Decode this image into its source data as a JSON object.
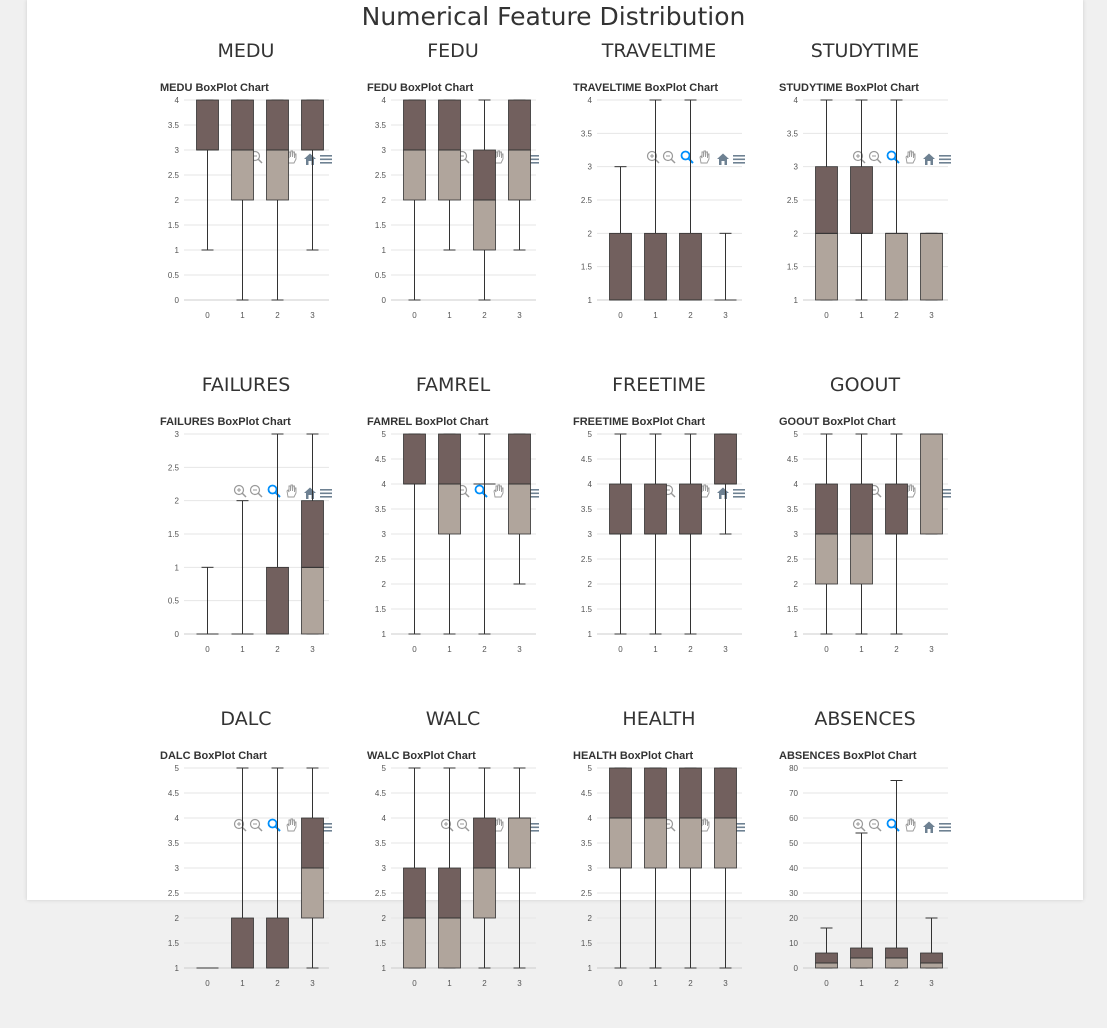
{
  "page": {
    "title": "Numerical Feature Distribution"
  },
  "colors": {
    "upper_box": "#72605e",
    "lower_box": "#b0a59c",
    "grid": "#e6e6e6",
    "axis": "#cccccc"
  },
  "toolbar_icons": [
    "zoom-in-icon",
    "zoom-out-icon",
    "magnify-icon",
    "pan-icon",
    "home-icon",
    "menu-icon"
  ],
  "chart_data": [
    {
      "type": "boxplot",
      "title": "MEDU",
      "chart_label": "MEDU BoxPlot Chart",
      "categories": [
        "0",
        "1",
        "2",
        "3"
      ],
      "ylim": [
        0,
        4
      ],
      "yticks": [
        "0",
        "0.5",
        "1",
        "1.5",
        "2",
        "2.5",
        "3",
        "3.5",
        "4"
      ],
      "boxes": [
        {
          "min": 1,
          "q1": 3,
          "median": 3,
          "q3": 4,
          "max": 4
        },
        {
          "min": 0,
          "q1": 2,
          "median": 3,
          "q3": 4,
          "max": 4
        },
        {
          "min": 0,
          "q1": 2,
          "median": 3,
          "q3": 4,
          "max": 4
        },
        {
          "min": 1,
          "q1": 3,
          "median": 3,
          "q3": 4,
          "max": 4
        }
      ]
    },
    {
      "type": "boxplot",
      "title": "FEDU",
      "chart_label": "FEDU BoxPlot Chart",
      "categories": [
        "0",
        "1",
        "2",
        "3"
      ],
      "ylim": [
        0,
        4
      ],
      "yticks": [
        "0",
        "0.5",
        "1",
        "1.5",
        "2",
        "2.5",
        "3",
        "3.5",
        "4"
      ],
      "boxes": [
        {
          "min": 0,
          "q1": 2,
          "median": 3,
          "q3": 4,
          "max": 4
        },
        {
          "min": 1,
          "q1": 2,
          "median": 3,
          "q3": 4,
          "max": 4
        },
        {
          "min": 0,
          "q1": 1,
          "median": 2,
          "q3": 3,
          "max": 4
        },
        {
          "min": 1,
          "q1": 2,
          "median": 3,
          "q3": 4,
          "max": 4
        }
      ]
    },
    {
      "type": "boxplot",
      "title": "TRAVELTIME",
      "chart_label": "TRAVELTIME BoxPlot Chart",
      "categories": [
        "0",
        "1",
        "2",
        "3"
      ],
      "ylim": [
        1,
        4
      ],
      "yticks": [
        "1",
        "1.5",
        "2",
        "2.5",
        "3",
        "3.5",
        "4"
      ],
      "boxes": [
        {
          "min": 1,
          "q1": 1,
          "median": 1,
          "q3": 2,
          "max": 3
        },
        {
          "min": 1,
          "q1": 1,
          "median": 1,
          "q3": 2,
          "max": 4
        },
        {
          "min": 1,
          "q1": 1,
          "median": 1,
          "q3": 2,
          "max": 4
        },
        {
          "min": 1,
          "q1": 1,
          "median": 1,
          "q3": 1,
          "max": 2
        }
      ]
    },
    {
      "type": "boxplot",
      "title": "STUDYTIME",
      "chart_label": "STUDYTIME BoxPlot Chart",
      "categories": [
        "0",
        "1",
        "2",
        "3"
      ],
      "ylim": [
        1,
        4
      ],
      "yticks": [
        "1",
        "1.5",
        "2",
        "2.5",
        "3",
        "3.5",
        "4"
      ],
      "boxes": [
        {
          "min": 1,
          "q1": 1,
          "median": 2,
          "q3": 3,
          "max": 4
        },
        {
          "min": 1,
          "q1": 2,
          "median": 2,
          "q3": 3,
          "max": 4
        },
        {
          "min": 1,
          "q1": 1,
          "median": 2,
          "q3": 2,
          "max": 4
        },
        {
          "min": 1,
          "q1": 1,
          "median": 2,
          "q3": 2,
          "max": 2
        }
      ]
    },
    {
      "type": "boxplot",
      "title": "FAILURES",
      "chart_label": "FAILURES BoxPlot Chart",
      "categories": [
        "0",
        "1",
        "2",
        "3"
      ],
      "ylim": [
        0,
        3
      ],
      "yticks": [
        "0",
        "0.5",
        "1",
        "1.5",
        "2",
        "2.5",
        "3"
      ],
      "boxes": [
        {
          "min": 0,
          "q1": 0,
          "median": 0,
          "q3": 0,
          "max": 1
        },
        {
          "min": 0,
          "q1": 0,
          "median": 0,
          "q3": 0,
          "max": 2
        },
        {
          "min": 0,
          "q1": 0,
          "median": 0,
          "q3": 1,
          "max": 3
        },
        {
          "min": 0,
          "q1": 0,
          "median": 1,
          "q3": 2,
          "max": 3
        }
      ]
    },
    {
      "type": "boxplot",
      "title": "FAMREL",
      "chart_label": "FAMREL BoxPlot Chart",
      "categories": [
        "0",
        "1",
        "2",
        "3"
      ],
      "ylim": [
        1,
        5
      ],
      "yticks": [
        "1",
        "1.5",
        "2",
        "2.5",
        "3",
        "3.5",
        "4",
        "4.5",
        "5"
      ],
      "boxes": [
        {
          "min": 1,
          "q1": 4,
          "median": 4,
          "q3": 5,
          "max": 5
        },
        {
          "min": 1,
          "q1": 3,
          "median": 4,
          "q3": 5,
          "max": 5
        },
        {
          "min": 1,
          "q1": 4,
          "median": 4,
          "q3": 4,
          "max": 5
        },
        {
          "min": 2,
          "q1": 3,
          "median": 4,
          "q3": 5,
          "max": 5
        }
      ]
    },
    {
      "type": "boxplot",
      "title": "FREETIME",
      "chart_label": "FREETIME BoxPlot Chart",
      "categories": [
        "0",
        "1",
        "2",
        "3"
      ],
      "ylim": [
        1,
        5
      ],
      "yticks": [
        "1",
        "1.5",
        "2",
        "2.5",
        "3",
        "3.5",
        "4",
        "4.5",
        "5"
      ],
      "boxes": [
        {
          "min": 1,
          "q1": 3,
          "median": 3,
          "q3": 4,
          "max": 5
        },
        {
          "min": 1,
          "q1": 3,
          "median": 3,
          "q3": 4,
          "max": 5
        },
        {
          "min": 1,
          "q1": 3,
          "median": 3,
          "q3": 4,
          "max": 5
        },
        {
          "min": 3,
          "q1": 4,
          "median": 4,
          "q3": 5,
          "max": 5
        }
      ]
    },
    {
      "type": "boxplot",
      "title": "GOOUT",
      "chart_label": "GOOUT BoxPlot Chart",
      "categories": [
        "0",
        "1",
        "2",
        "3"
      ],
      "ylim": [
        1,
        5
      ],
      "yticks": [
        "1",
        "1.5",
        "2",
        "2.5",
        "3",
        "3.5",
        "4",
        "4.5",
        "5"
      ],
      "boxes": [
        {
          "min": 1,
          "q1": 2,
          "median": 3,
          "q3": 4,
          "max": 5
        },
        {
          "min": 1,
          "q1": 2,
          "median": 3,
          "q3": 4,
          "max": 5
        },
        {
          "min": 1,
          "q1": 3,
          "median": 3,
          "q3": 4,
          "max": 5
        },
        {
          "min": 3,
          "q1": 3,
          "median": 5,
          "q3": 5,
          "max": 5
        }
      ]
    },
    {
      "type": "boxplot",
      "title": "DALC",
      "chart_label": "DALC BoxPlot Chart",
      "categories": [
        "0",
        "1",
        "2",
        "3"
      ],
      "ylim": [
        1,
        5
      ],
      "yticks": [
        "1",
        "1.5",
        "2",
        "2.5",
        "3",
        "3.5",
        "4",
        "4.5",
        "5"
      ],
      "boxes": [
        {
          "min": 1,
          "q1": 1,
          "median": 1,
          "q3": 1,
          "max": 1
        },
        {
          "min": 1,
          "q1": 1,
          "median": 1,
          "q3": 2,
          "max": 5
        },
        {
          "min": 1,
          "q1": 1,
          "median": 1,
          "q3": 2,
          "max": 5
        },
        {
          "min": 1,
          "q1": 2,
          "median": 3,
          "q3": 4,
          "max": 5
        }
      ]
    },
    {
      "type": "boxplot",
      "title": "WALC",
      "chart_label": "WALC BoxPlot Chart",
      "categories": [
        "0",
        "1",
        "2",
        "3"
      ],
      "ylim": [
        1,
        5
      ],
      "yticks": [
        "1",
        "1.5",
        "2",
        "2.5",
        "3",
        "3.5",
        "4",
        "4.5",
        "5"
      ],
      "boxes": [
        {
          "min": 1,
          "q1": 1,
          "median": 2,
          "q3": 3,
          "max": 5
        },
        {
          "min": 1,
          "q1": 1,
          "median": 2,
          "q3": 3,
          "max": 5
        },
        {
          "min": 1,
          "q1": 2,
          "median": 3,
          "q3": 4,
          "max": 5
        },
        {
          "min": 1,
          "q1": 3,
          "median": 4,
          "q3": 4,
          "max": 5
        }
      ]
    },
    {
      "type": "boxplot",
      "title": "HEALTH",
      "chart_label": "HEALTH BoxPlot Chart",
      "categories": [
        "0",
        "1",
        "2",
        "3"
      ],
      "ylim": [
        1,
        5
      ],
      "yticks": [
        "1",
        "1.5",
        "2",
        "2.5",
        "3",
        "3.5",
        "4",
        "4.5",
        "5"
      ],
      "boxes": [
        {
          "min": 1,
          "q1": 3,
          "median": 4,
          "q3": 5,
          "max": 5
        },
        {
          "min": 1,
          "q1": 3,
          "median": 4,
          "q3": 5,
          "max": 5
        },
        {
          "min": 1,
          "q1": 3,
          "median": 4,
          "q3": 5,
          "max": 5
        },
        {
          "min": 1,
          "q1": 3,
          "median": 4,
          "q3": 5,
          "max": 5
        }
      ]
    },
    {
      "type": "boxplot",
      "title": "ABSENCES",
      "chart_label": "ABSENCES BoxPlot Chart",
      "categories": [
        "0",
        "1",
        "2",
        "3"
      ],
      "ylim": [
        0,
        80
      ],
      "yticks": [
        "0",
        "10",
        "20",
        "30",
        "40",
        "50",
        "60",
        "70",
        "80"
      ],
      "boxes": [
        {
          "min": 0,
          "q1": 0,
          "median": 2,
          "q3": 6,
          "max": 16
        },
        {
          "min": 0,
          "q1": 0,
          "median": 4,
          "q3": 8,
          "max": 54
        },
        {
          "min": 0,
          "q1": 0,
          "median": 4,
          "q3": 8,
          "max": 75
        },
        {
          "min": 0,
          "q1": 0,
          "median": 2,
          "q3": 6,
          "max": 20
        }
      ]
    }
  ]
}
